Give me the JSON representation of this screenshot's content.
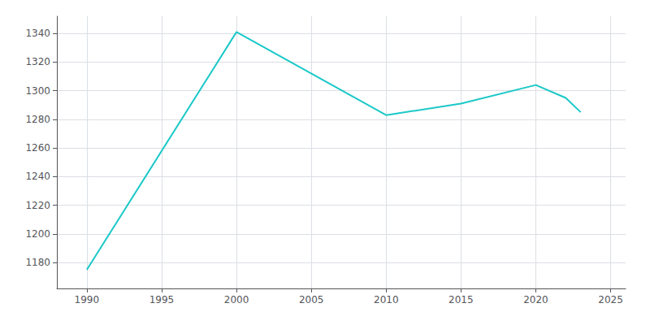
{
  "chart_data": {
    "type": "line",
    "x": [
      1990,
      2000,
      2010,
      2015,
      2020,
      2022,
      2023
    ],
    "values": [
      1175,
      1341,
      1283,
      1291,
      1304,
      1295,
      1285
    ],
    "color": "#1bc8c8",
    "xlim": [
      1988,
      2026
    ],
    "ylim": [
      1162,
      1352
    ],
    "xticks": [
      1990,
      1995,
      2000,
      2005,
      2010,
      2015,
      2020,
      2025
    ],
    "yticks": [
      1180,
      1200,
      1220,
      1240,
      1260,
      1280,
      1300,
      1320,
      1340
    ],
    "grid": true
  }
}
